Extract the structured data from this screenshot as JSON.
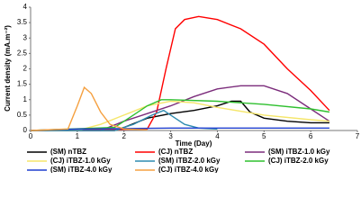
{
  "chart_data": {
    "type": "line",
    "y_label": "Current density (mA.m⁻²)",
    "x_label": "Time (Day)",
    "xlim": [
      0,
      7
    ],
    "xticks": [
      0,
      1,
      2,
      3,
      4,
      5,
      6,
      7
    ],
    "ylim": [
      0,
      4
    ],
    "yticks": [
      0,
      0.5,
      1,
      1.5,
      2,
      2.5,
      3,
      3.5,
      4
    ],
    "grid": false,
    "legend": "bottom",
    "series": [
      {
        "name": "(SM) nTBZ",
        "color": "#000000",
        "x": [
          0,
          1.8,
          2.0,
          2.5,
          3.0,
          3.5,
          4.0,
          4.3,
          4.5,
          4.7,
          5.0,
          5.5,
          6.0,
          6.4
        ],
        "values": [
          0,
          0,
          0.1,
          0.4,
          0.55,
          0.65,
          0.8,
          0.95,
          0.95,
          0.6,
          0.4,
          0.3,
          0.25,
          0.25
        ]
      },
      {
        "name": "(CJ) nTBZ",
        "color": "#ff0000",
        "x": [
          0,
          2.5,
          2.7,
          2.9,
          3.1,
          3.3,
          3.6,
          4.0,
          4.5,
          5.0,
          5.5,
          6.0,
          6.4
        ],
        "values": [
          0,
          0.05,
          0.6,
          2,
          3.3,
          3.6,
          3.7,
          3.6,
          3.3,
          2.8,
          2.0,
          1.3,
          0.65
        ]
      },
      {
        "name": "(SM) iTBZ-1.0 kGy",
        "color": "#7b2c7b",
        "x": [
          0,
          1.5,
          2.0,
          2.5,
          3.0,
          3.5,
          4.0,
          4.5,
          5.0,
          5.5,
          6.0,
          6.4
        ],
        "values": [
          0,
          0,
          0.3,
          0.55,
          0.8,
          1.1,
          1.35,
          1.45,
          1.45,
          1.2,
          0.7,
          0.3
        ]
      },
      {
        "name": "(CJ) iTBZ-1.0 kGy",
        "color": "#f5e66a",
        "x": [
          0,
          1.0,
          1.5,
          2.0,
          2.5,
          3.0,
          3.5,
          4.0,
          5.0,
          6.0,
          6.4
        ],
        "values": [
          0,
          0,
          0.2,
          0.5,
          0.8,
          0.95,
          0.9,
          0.75,
          0.5,
          0.35,
          0.3
        ]
      },
      {
        "name": "(SM) iTBZ-2.0 kGy",
        "color": "#2e8bb0",
        "x": [
          0,
          1.8,
          2.2,
          2.6,
          2.85,
          3.0,
          3.3,
          3.6,
          4.0
        ],
        "values": [
          0,
          0,
          0.2,
          0.5,
          0.65,
          0.5,
          0.2,
          0.08,
          0.05
        ]
      },
      {
        "name": "(CJ) iTBZ-2.0 kGy",
        "color": "#2fc02f",
        "x": [
          0,
          1.8,
          2.2,
          2.5,
          2.8,
          3.0,
          4.0,
          5.0,
          6.0,
          6.4
        ],
        "values": [
          0,
          0.1,
          0.5,
          0.8,
          1.0,
          1.0,
          0.95,
          0.85,
          0.7,
          0.6
        ]
      },
      {
        "name": "(SM) iTBZ-4.0 kGy",
        "color": "#1f3fcf",
        "x": [
          0,
          1,
          3,
          5,
          6.4
        ],
        "values": [
          0,
          0.05,
          0.08,
          0.08,
          0.08
        ]
      },
      {
        "name": "(CJ) iTBZ-4.0 kGy",
        "color": "#f5a040",
        "x": [
          0,
          0.8,
          1.0,
          1.15,
          1.3,
          1.5,
          1.7,
          2.0,
          2.5
        ],
        "values": [
          0,
          0.05,
          0.8,
          1.4,
          1.2,
          0.6,
          0.2,
          0.05,
          0.02
        ]
      }
    ]
  }
}
